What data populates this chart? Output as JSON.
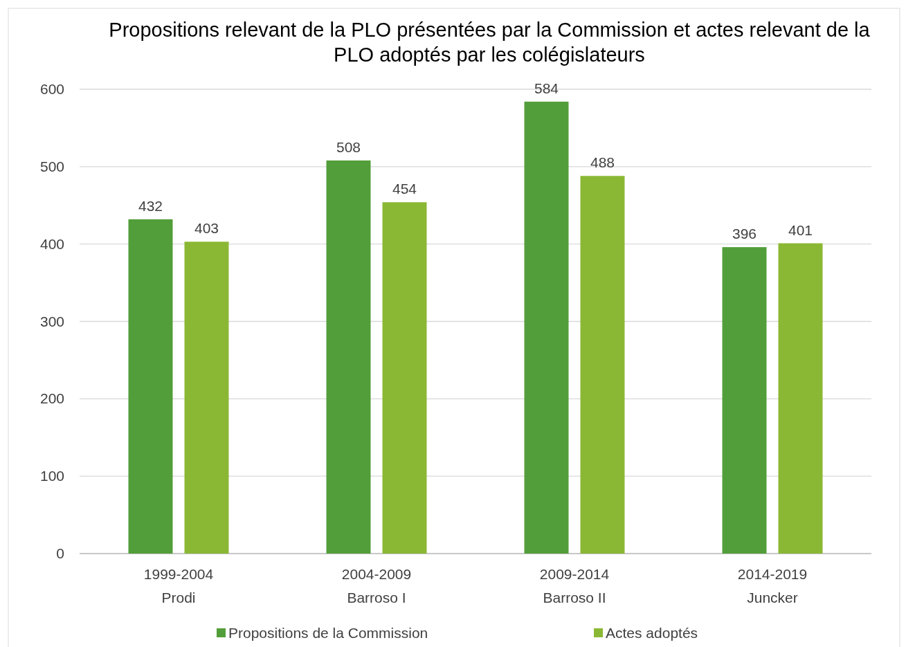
{
  "chart_data": {
    "type": "bar",
    "title": "Propositions relevant de la PLO présentées par la Commission et actes relevant de la PLO adoptés par les colégislateurs",
    "categories": [
      "1999-2004\nProdi",
      "2004-2009\nBarroso I",
      "2009-2014\nBarroso II",
      "2014-2019\nJuncker"
    ],
    "series": [
      {
        "name": "Propositions de la Commission",
        "color": "#529e3a",
        "values": [
          432,
          508,
          584,
          396
        ]
      },
      {
        "name": "Actes adoptés",
        "color": "#8bb834",
        "values": [
          403,
          454,
          488,
          401
        ]
      }
    ],
    "ylim": [
      0,
      600
    ],
    "yticks": [
      0,
      100,
      200,
      300,
      400,
      500,
      600
    ],
    "grid": "y",
    "legend": "bottom",
    "data_labels": true
  }
}
